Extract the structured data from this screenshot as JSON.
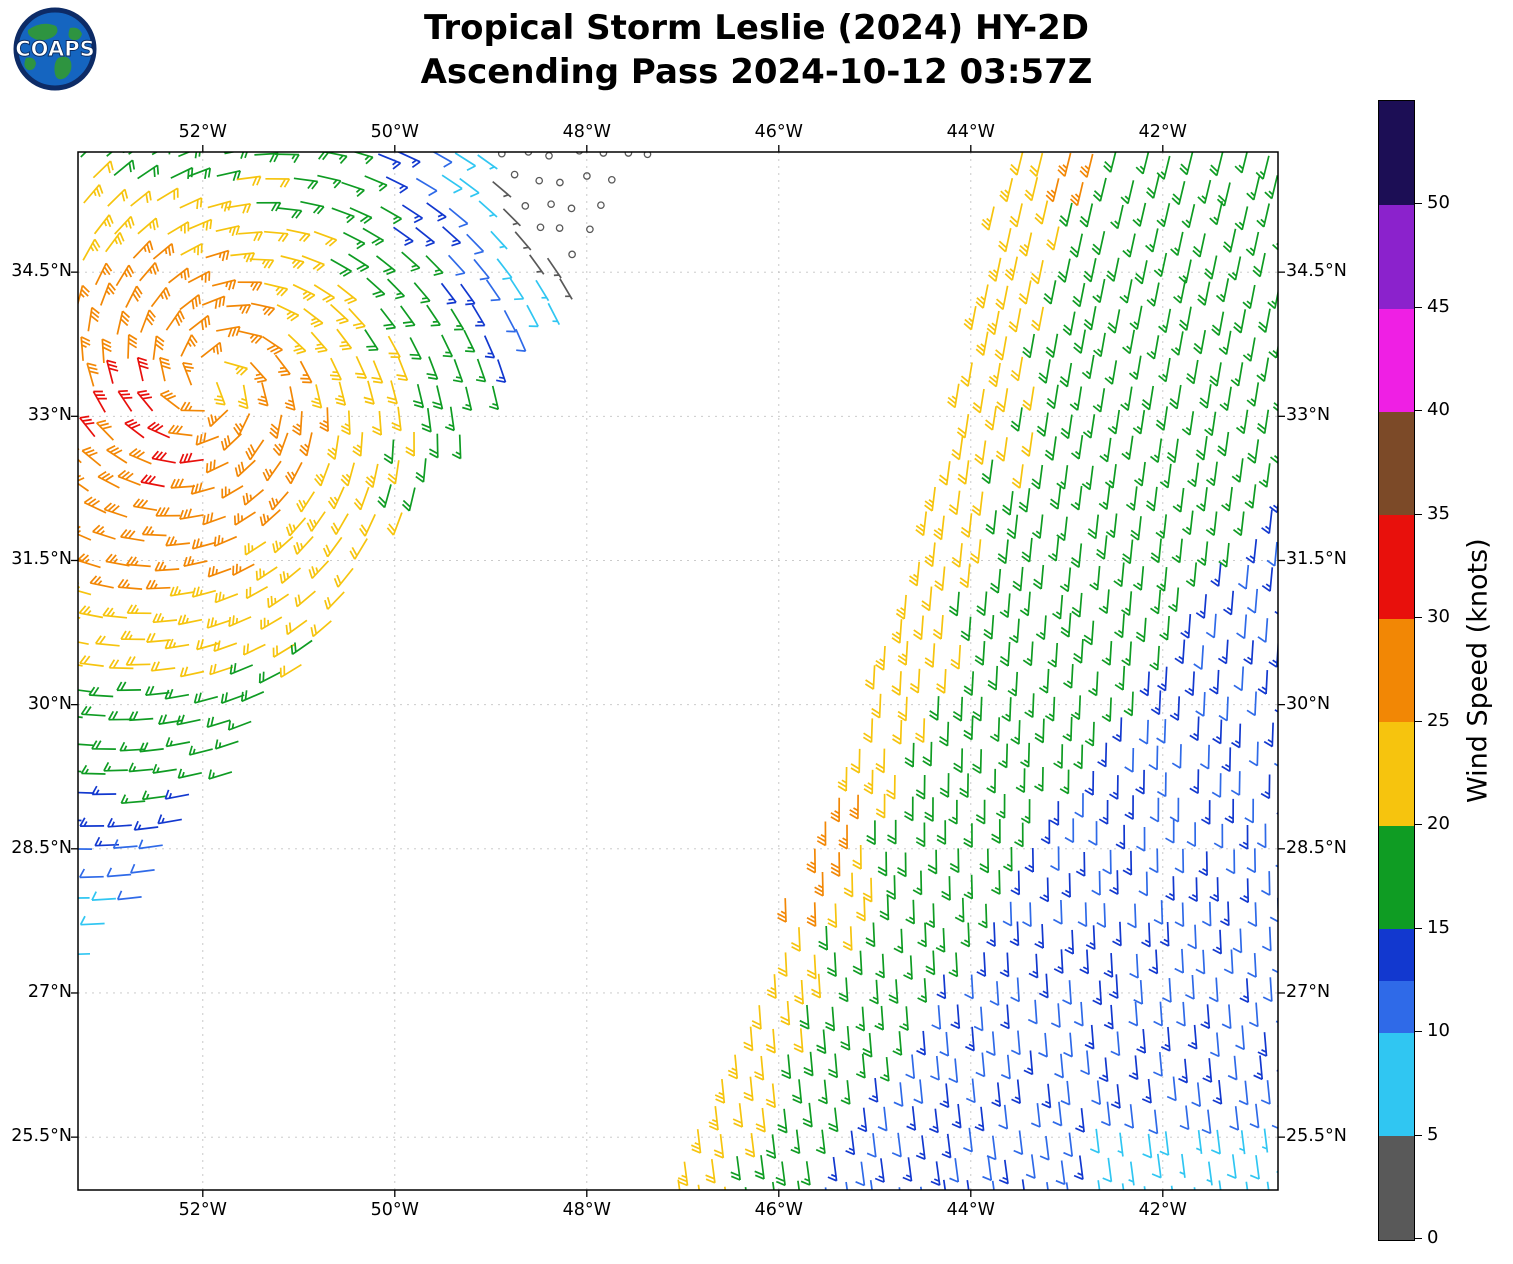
{
  "header": {
    "title_line1": "Tropical Storm Leslie (2024) HY-2D",
    "title_line2": "Ascending Pass 2024-10-12 03:57Z",
    "logo_text": "COAPS"
  },
  "chart_data": {
    "type": "wind_barb_map",
    "title": "Tropical Storm Leslie (2024) HY-2D",
    "subtitle": "Ascending Pass 2024-10-12 03:57Z",
    "projection": "lat-lon",
    "lon_range": [
      -53.3,
      -40.8
    ],
    "lat_range": [
      24.95,
      35.75
    ],
    "x_ticks": [
      {
        "value": -52,
        "label": "52°W"
      },
      {
        "value": -50,
        "label": "50°W"
      },
      {
        "value": -48,
        "label": "48°W"
      },
      {
        "value": -46,
        "label": "46°W"
      },
      {
        "value": -44,
        "label": "44°W"
      },
      {
        "value": -42,
        "label": "42°W"
      }
    ],
    "y_ticks": [
      {
        "value": 34.5,
        "label": "34.5°N"
      },
      {
        "value": 33,
        "label": "33°N"
      },
      {
        "value": 31.5,
        "label": "31.5°N"
      },
      {
        "value": 30,
        "label": "30°N"
      },
      {
        "value": 28.5,
        "label": "28.5°N"
      },
      {
        "value": 27,
        "label": "27°N"
      },
      {
        "value": 25.5,
        "label": "25.5°N"
      }
    ],
    "grid": {
      "on": true,
      "style": "dashed",
      "color": "#c4c4c4"
    },
    "colorbar": {
      "label": "Wind Speed (knots)",
      "min": 0,
      "max": 55,
      "tick_values": [
        0,
        5,
        10,
        15,
        20,
        25,
        30,
        35,
        40,
        45,
        50
      ],
      "segments": [
        {
          "from": 0,
          "to": 5,
          "color": "#595959"
        },
        {
          "from": 5,
          "to": 10,
          "color": "#30c6f2"
        },
        {
          "from": 10,
          "to": 12.5,
          "color": "#2f6ae8"
        },
        {
          "from": 12.5,
          "to": 15,
          "color": "#1238cf"
        },
        {
          "from": 15,
          "to": 20,
          "color": "#0f9c23"
        },
        {
          "from": 20,
          "to": 25,
          "color": "#f6c40e"
        },
        {
          "from": 25,
          "to": 30,
          "color": "#f28705"
        },
        {
          "from": 30,
          "to": 35,
          "color": "#e8100c"
        },
        {
          "from": 35,
          "to": 40,
          "color": "#7c4a28"
        },
        {
          "from": 40,
          "to": 45,
          "color": "#ef1fe4"
        },
        {
          "from": 45,
          "to": 50,
          "color": "#8b22cc"
        },
        {
          "from": 50,
          "to": 55,
          "color": "#1c0e55"
        }
      ]
    },
    "barb_convention": {
      "full_barb_knots": 10,
      "half_barb_knots": 5,
      "calm_circle_below_knots": 2.5,
      "grid_spacing_deg": 0.27
    },
    "storm": {
      "center_lat": 33.35,
      "center_lon": -51.9,
      "rotation": "cyclonic_ccw"
    },
    "wind_field_model": {
      "left_swath": {
        "right_boundary": {
          "lat_ref": 27,
          "lon_at_ref": -53.25,
          "dlon_dlat": 0.68
        },
        "radial_profile": {
          "center_speed": 24,
          "peak_speed": 29,
          "peak_radius": 0.7,
          "falloff_per_deg": 4.6
        },
        "asymmetry": {
          "amplitude": 4,
          "max_azimuth_deg": 235
        },
        "calm_anomaly": {
          "lat": 35.5,
          "lon": -48.1,
          "strength": 13,
          "sigma2": 1.6
        },
        "inflow_factor": 0.25,
        "noise_knots": 2.6
      },
      "right_swath": {
        "left_boundary": {
          "lat_ref": 25,
          "lon_at_ref": -47.3,
          "linear": 0.5,
          "quad": -0.015
        },
        "speed_near_edge": 23.5,
        "speed_gradient": 4.5,
        "speed_floor": 17.2,
        "blue_region": {
          "lat_ref": 25.4,
          "lon_ref": -45.2,
          "dlon_dlat": 0.66,
          "speed": 12.3,
          "blend_deg": 0.5
        },
        "cyan_corner": {
          "lat_max": 25.7,
          "lon_min": -42.7,
          "speed": 8
        },
        "orange_band": {
          "lat_min": 27.9,
          "lat_max": 29.15,
          "d_max": 0.45,
          "speed": 26.5
        },
        "orange_top": {
          "lat_min": 35.25,
          "d_min": 0.5,
          "d_max": 1.0,
          "speed": 26.5
        },
        "bearing_south_deg": -8,
        "bearing_north_deg": 14,
        "noise_knots": 2.2
      }
    }
  }
}
